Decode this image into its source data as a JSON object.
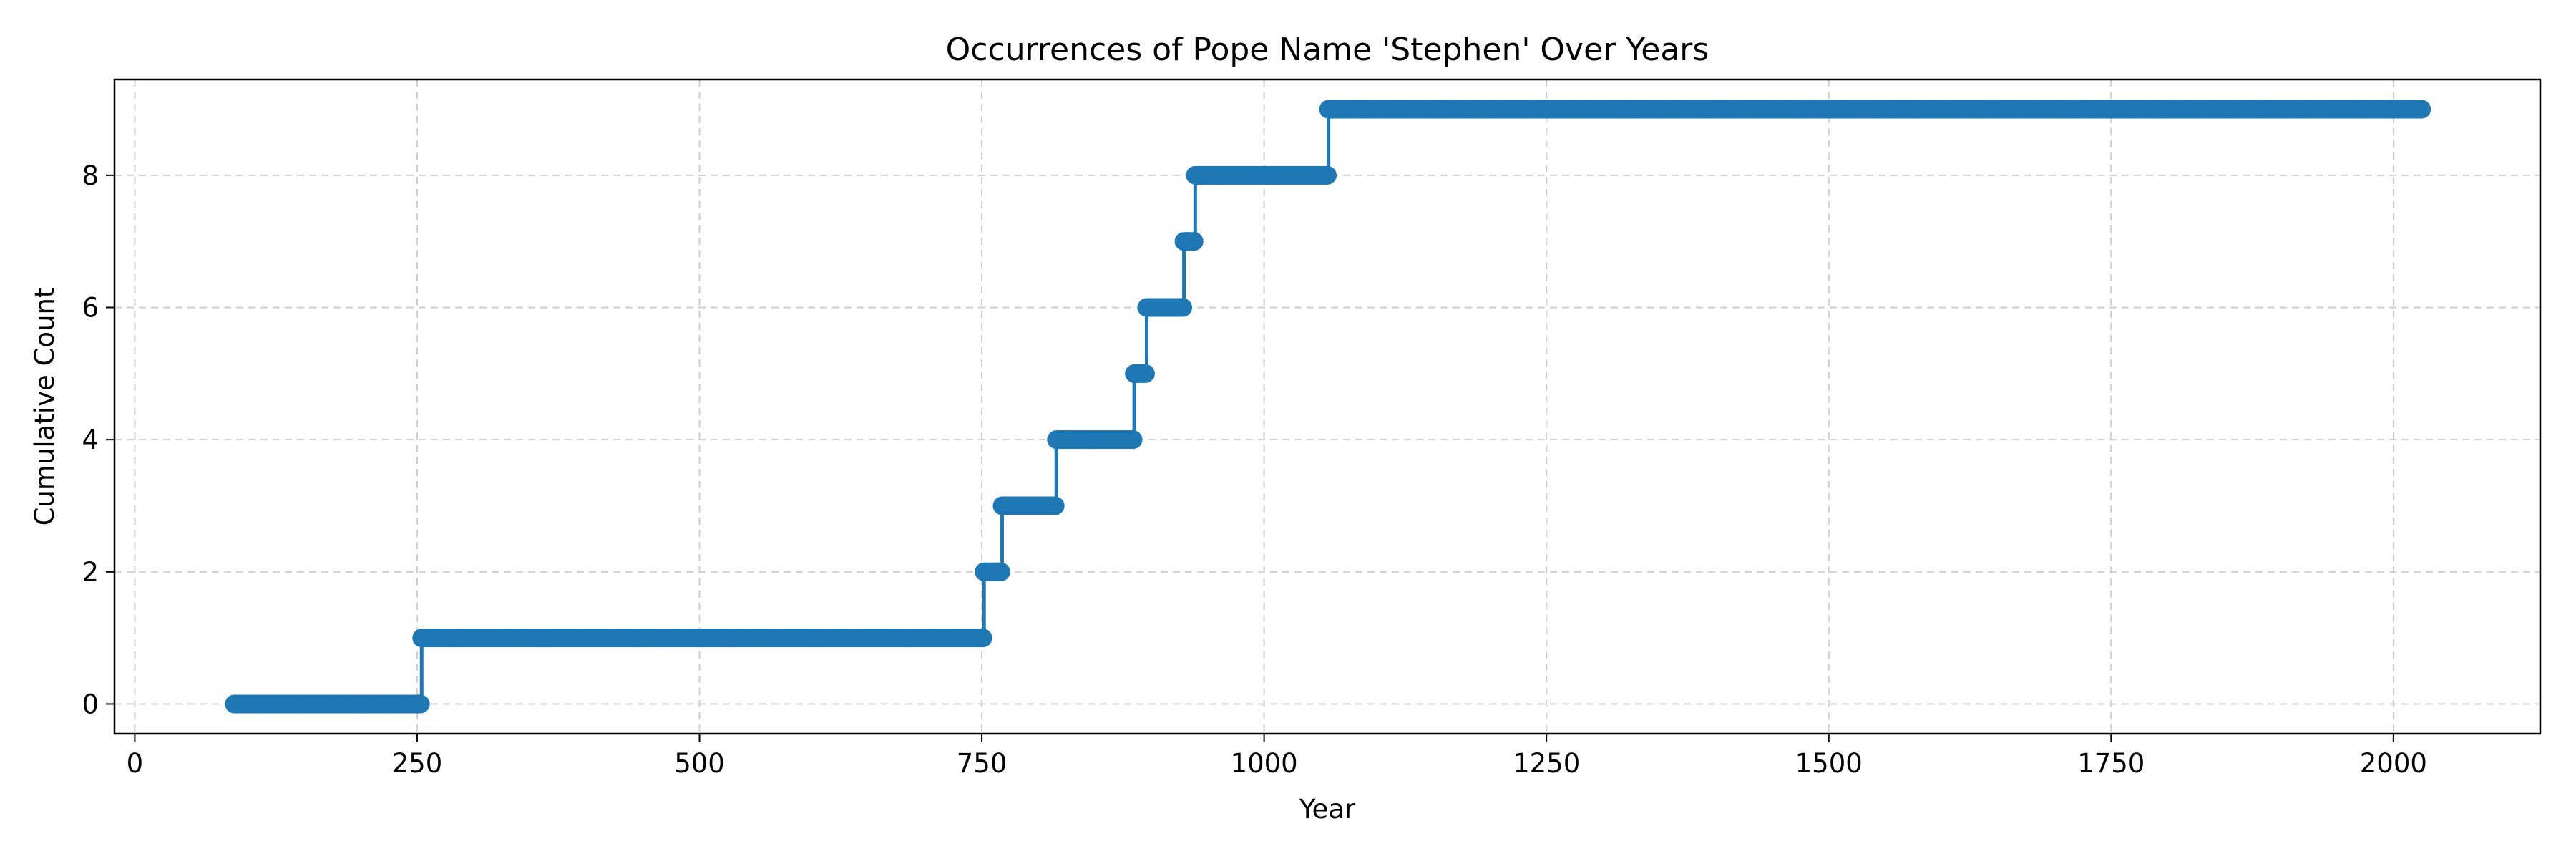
{
  "chart_data": {
    "type": "line",
    "title": "Occurrences of Pope Name 'Stephen' Over Years",
    "xlabel": "Year",
    "ylabel": "Cumulative Count",
    "xlim": [
      -18,
      2130
    ],
    "ylim": [
      -0.45,
      9.45
    ],
    "xticks": [
      0,
      250,
      500,
      750,
      1000,
      1250,
      1500,
      1750,
      2000
    ],
    "yticks": [
      0,
      2,
      4,
      6,
      8
    ],
    "grid": true,
    "line_color": "#1f77b4",
    "series": [
      {
        "x_start": 88,
        "x_end": 2025,
        "steps": [
          {
            "year": 254,
            "count": 1
          },
          {
            "year": 752,
            "count": 2
          },
          {
            "year": 768,
            "count": 3
          },
          {
            "year": 816,
            "count": 4
          },
          {
            "year": 885,
            "count": 5
          },
          {
            "year": 896,
            "count": 6
          },
          {
            "year": 929,
            "count": 7
          },
          {
            "year": 939,
            "count": 8
          },
          {
            "year": 1057,
            "count": 9
          }
        ]
      }
    ]
  }
}
